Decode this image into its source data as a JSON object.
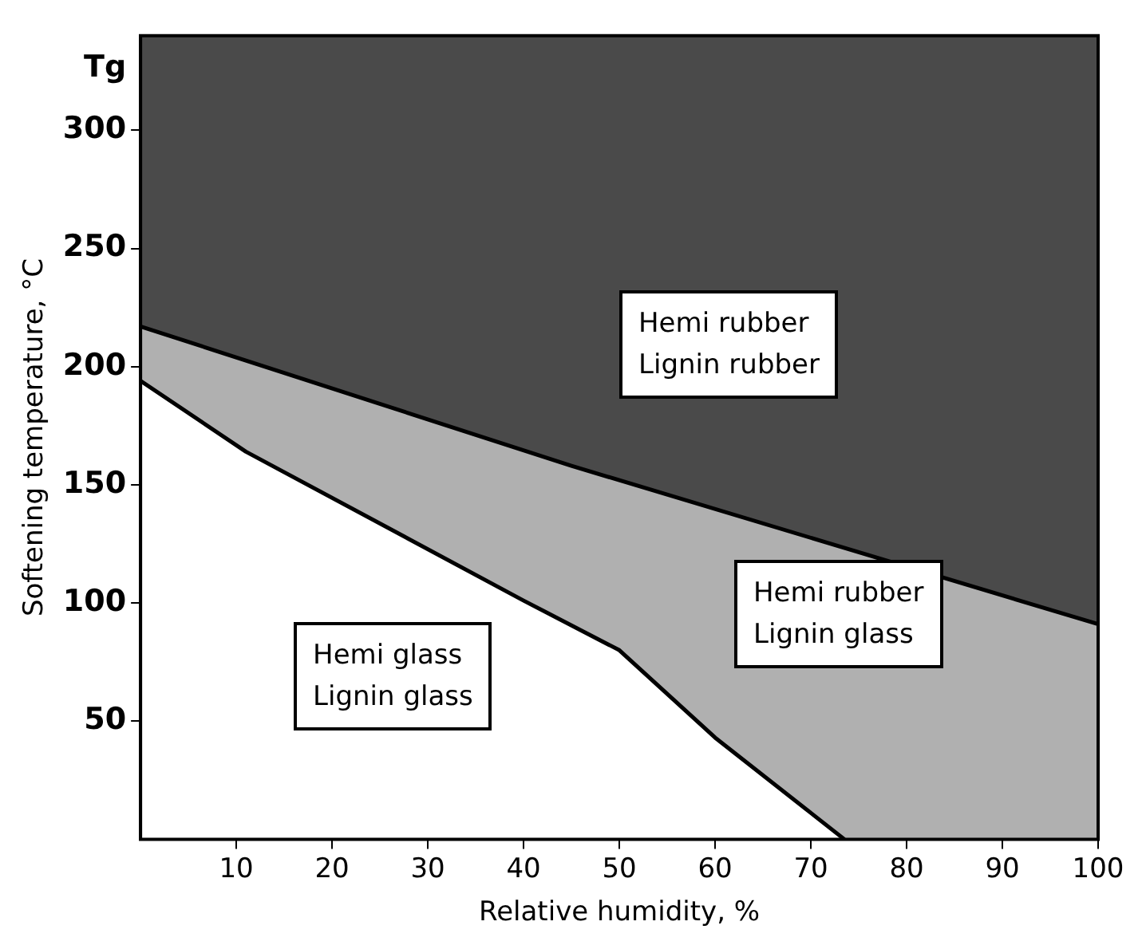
{
  "chart_data": {
    "type": "area",
    "xlabel": "Relative humidity, %",
    "ylabel": "Softening temperature, °C",
    "xlim": [
      0,
      100
    ],
    "xticks": [
      10,
      20,
      30,
      40,
      50,
      60,
      70,
      80,
      90,
      100
    ],
    "ylim": [
      0,
      340
    ],
    "yticks": [
      50,
      100,
      150,
      200,
      250,
      300,
      {
        "value": 326,
        "label": "Tg"
      }
    ],
    "legend": false,
    "series": [
      {
        "color": "#b0b0b0",
        "x": [
          0,
          45,
          100
        ],
        "values": [
          217,
          158,
          91
        ]
      },
      {
        "color": "#ffffff",
        "x": [
          0,
          11,
          40,
          50,
          60,
          73.5
        ],
        "values": [
          194,
          164,
          101,
          80,
          43,
          0
        ]
      }
    ],
    "annotations": [
      "Hemi rubber\nLignin rubber",
      "Hemi glass\nLignin glass",
      "Hemi rubber\nLignin glass"
    ]
  }
}
